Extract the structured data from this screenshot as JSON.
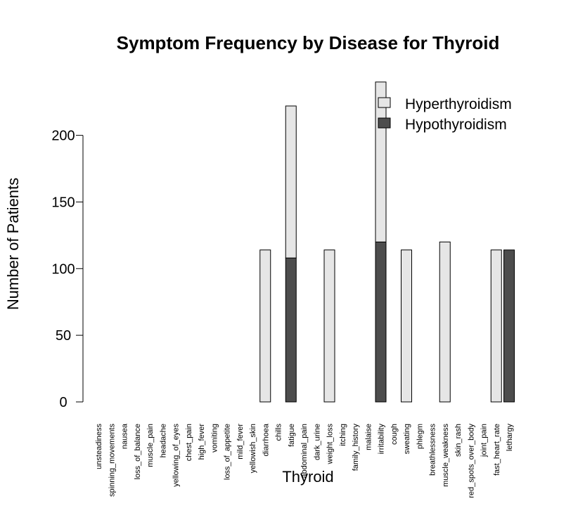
{
  "chart_data": {
    "type": "bar",
    "stacked": true,
    "title": "Symptom Frequency by Disease for Thyroid",
    "xlabel": "Thyroid",
    "ylabel": "Number of Patients",
    "ylim": [
      0,
      240
    ],
    "yticks": [
      0,
      50,
      100,
      150,
      200
    ],
    "grid": false,
    "legend_position": "top-right",
    "categories": [
      "unsteadiness",
      "spinning_movements",
      "nausea",
      "loss_of_balance",
      "muscle_pain",
      "headache",
      "yellowing_of_eyes",
      "chest_pain",
      "high_fever",
      "vomiting",
      "loss_of_appetite",
      "mild_fever",
      "yellowish_skin",
      "diarrhoea",
      "chills",
      "fatigue",
      "abdominal_pain",
      "dark_urine",
      "weight_loss",
      "itching",
      "family_history",
      "malaise",
      "irritability",
      "cough",
      "sweating",
      "phlegm",
      "breathlessness",
      "muscle_weakness",
      "skin_rash",
      "red_spots_over_body",
      "joint_pain",
      "fast_heart_rate",
      "lethargy"
    ],
    "series": [
      {
        "name": "Hypothyroidism",
        "color": "#4d4d4d",
        "values": [
          0,
          0,
          0,
          0,
          0,
          0,
          0,
          0,
          0,
          0,
          0,
          0,
          0,
          0,
          0,
          108,
          0,
          0,
          0,
          0,
          0,
          0,
          120,
          0,
          0,
          0,
          0,
          0,
          0,
          0,
          0,
          0,
          114
        ]
      },
      {
        "name": "Hyperthyroidism",
        "color": "#e6e6e6",
        "values": [
          0,
          0,
          0,
          0,
          0,
          0,
          0,
          0,
          0,
          0,
          0,
          0,
          0,
          114,
          0,
          114,
          0,
          0,
          114,
          0,
          0,
          0,
          120,
          0,
          114,
          0,
          0,
          120,
          0,
          0,
          0,
          114,
          0
        ]
      }
    ],
    "legend": [
      {
        "label": "Hyperthyroidism",
        "color": "#e6e6e6"
      },
      {
        "label": "Hypothyroidism",
        "color": "#4d4d4d"
      }
    ]
  }
}
